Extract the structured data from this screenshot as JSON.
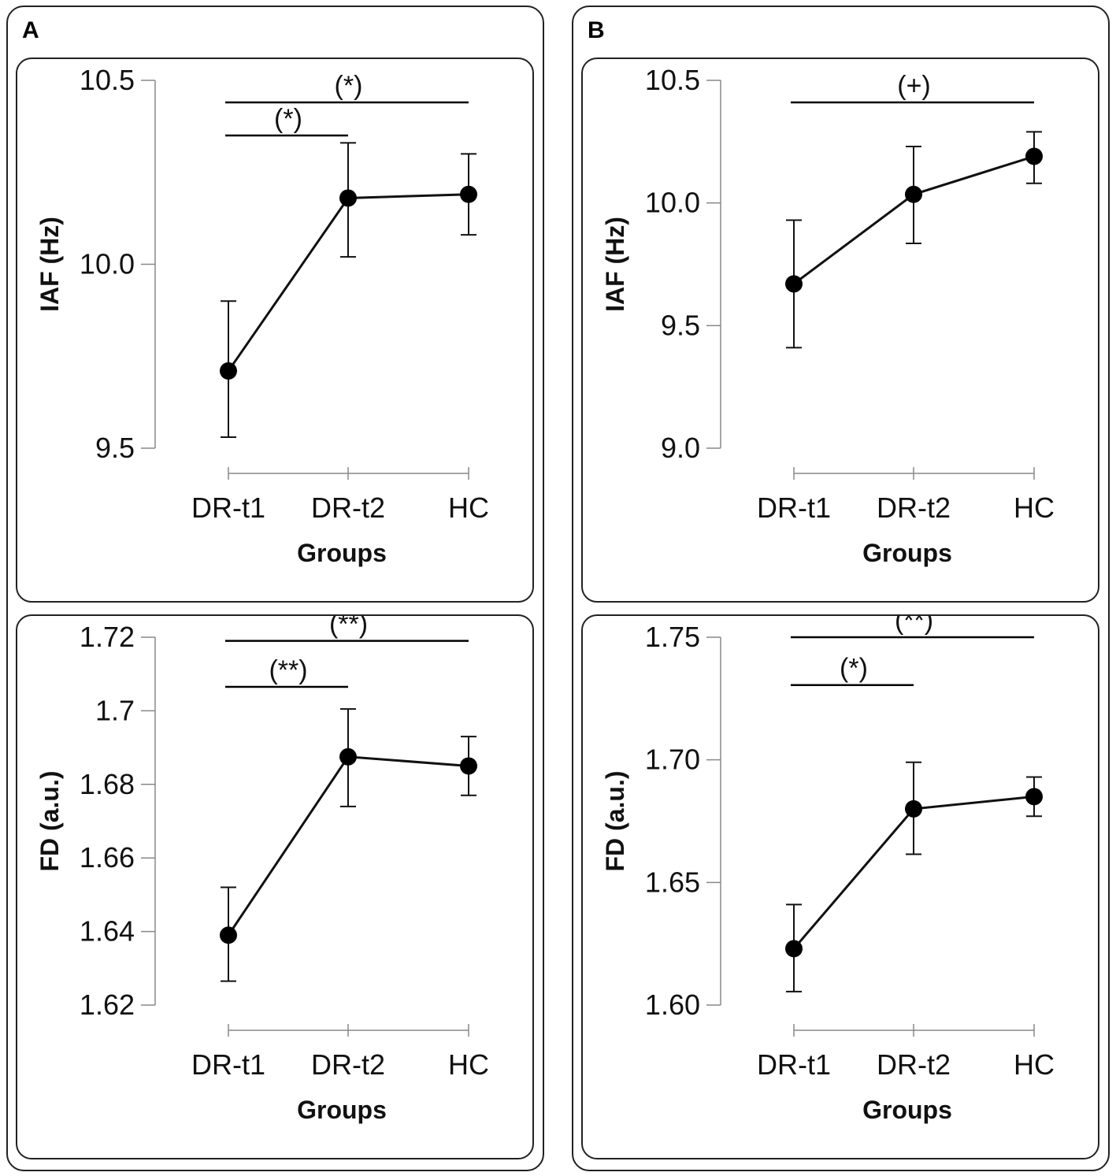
{
  "panels": [
    {
      "letter": "A"
    },
    {
      "letter": "B"
    }
  ],
  "chart_data": [
    {
      "type": "line",
      "panel": "A",
      "position": "top",
      "title": "",
      "xlabel": "Groups",
      "ylabel": "IAF (Hz)",
      "categories": [
        "DR-t1",
        "DR-t2",
        "HC"
      ],
      "values": [
        9.71,
        10.18,
        10.19
      ],
      "error_upper": [
        9.9,
        10.33,
        10.3
      ],
      "error_lower": [
        9.53,
        10.02,
        10.08
      ],
      "ylim": [
        9.5,
        10.5
      ],
      "yticks": [
        9.5,
        10.0,
        10.5
      ],
      "ytick_labels": [
        "9.5",
        "10.0",
        "10.5"
      ],
      "significance": [
        {
          "from": "DR-t1",
          "to": "HC",
          "label": "(*)",
          "y": 10.44
        },
        {
          "from": "DR-t1",
          "to": "DR-t2",
          "label": "(*)",
          "y": 10.35
        }
      ]
    },
    {
      "type": "line",
      "panel": "A",
      "position": "bottom",
      "title": "",
      "xlabel": "Groups",
      "ylabel": "FD (a.u.)",
      "categories": [
        "DR-t1",
        "DR-t2",
        "HC"
      ],
      "values": [
        1.639,
        1.6875,
        1.685
      ],
      "error_upper": [
        1.652,
        1.7005,
        1.693
      ],
      "error_lower": [
        1.6265,
        1.674,
        1.677
      ],
      "ylim": [
        1.62,
        1.72
      ],
      "yticks": [
        1.62,
        1.64,
        1.66,
        1.68,
        1.7,
        1.72
      ],
      "ytick_labels": [
        "1.62",
        "1.64",
        "1.66",
        "1.68",
        "1.7",
        "1.72"
      ],
      "significance": [
        {
          "from": "DR-t1",
          "to": "HC",
          "label": "(**)",
          "y": 1.719
        },
        {
          "from": "DR-t1",
          "to": "DR-t2",
          "label": "(**)",
          "y": 1.7065
        }
      ]
    },
    {
      "type": "line",
      "panel": "B",
      "position": "top",
      "title": "",
      "xlabel": "Groups",
      "ylabel": "IAF (Hz)",
      "categories": [
        "DR-t1",
        "DR-t2",
        "HC"
      ],
      "values": [
        9.67,
        10.035,
        10.19
      ],
      "error_upper": [
        9.93,
        10.23,
        10.29
      ],
      "error_lower": [
        9.41,
        9.835,
        10.08
      ],
      "ylim": [
        9.0,
        10.5
      ],
      "yticks": [
        9.0,
        9.5,
        10.0,
        10.5
      ],
      "ytick_labels": [
        "9.0",
        "9.5",
        "10.0",
        "10.5"
      ],
      "significance": [
        {
          "from": "DR-t1",
          "to": "HC",
          "label": "(+)",
          "y": 10.41
        }
      ]
    },
    {
      "type": "line",
      "panel": "B",
      "position": "bottom",
      "title": "",
      "xlabel": "Groups",
      "ylabel": "FD (a.u.)",
      "categories": [
        "DR-t1",
        "DR-t2",
        "HC"
      ],
      "values": [
        1.623,
        1.68,
        1.685
      ],
      "error_upper": [
        1.641,
        1.699,
        1.693
      ],
      "error_lower": [
        1.6055,
        1.6615,
        1.677
      ],
      "ylim": [
        1.6,
        1.75
      ],
      "yticks": [
        1.6,
        1.65,
        1.7,
        1.75
      ],
      "ytick_labels": [
        "1.60",
        "1.65",
        "1.70",
        "1.75"
      ],
      "significance": [
        {
          "from": "DR-t1",
          "to": "HC",
          "label": "(**)",
          "y": 1.75
        },
        {
          "from": "DR-t1",
          "to": "DR-t2",
          "label": "(*)",
          "y": 1.7305
        }
      ]
    }
  ]
}
